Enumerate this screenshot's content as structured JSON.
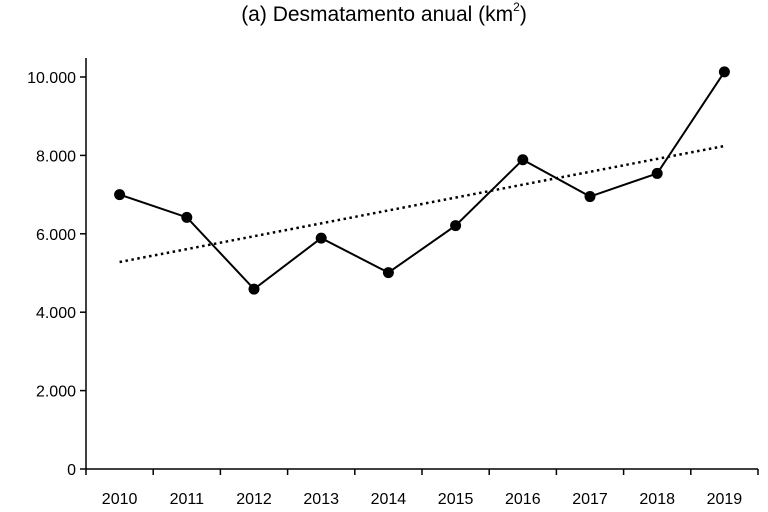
{
  "chart_data": {
    "type": "line",
    "title": "(a) Desmatamento anual (km",
    "title_superscript": "2",
    "title_suffix": ")",
    "xlabel": "",
    "ylabel": "",
    "categories": [
      "2010",
      "2011",
      "2012",
      "2013",
      "2014",
      "2015",
      "2016",
      "2017",
      "2018",
      "2019"
    ],
    "series": [
      {
        "values": [
          7000,
          6420,
          4590,
          5890,
          5010,
          6210,
          7890,
          6950,
          7540,
          10130
        ]
      }
    ],
    "trendline": {
      "style": "dotted",
      "start": 5280,
      "end": 8240
    },
    "ylim": [
      0,
      10000
    ],
    "yticks": [
      0,
      2000,
      4000,
      6000,
      8000,
      10000
    ],
    "ytick_labels": [
      "0",
      "2.000",
      "4.000",
      "6.000",
      "8.000",
      "10.000"
    ],
    "grid": false,
    "legend": "none",
    "line_color": "#000000",
    "marker": "filled-circle"
  }
}
